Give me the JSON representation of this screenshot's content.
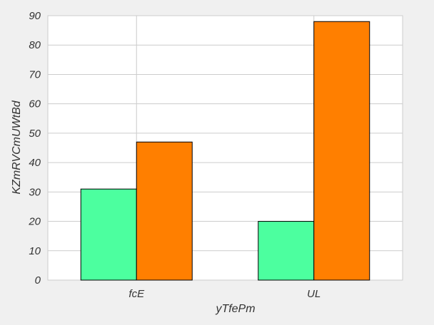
{
  "chart_data": {
    "type": "bar",
    "title": "",
    "xlabel": "yTfePm",
    "ylabel": "KZmRVCmUWtBd",
    "categories": [
      "fcE",
      "UL"
    ],
    "series": [
      {
        "values": [
          31,
          20
        ],
        "color": "#4cff9f"
      },
      {
        "values": [
          47,
          88
        ],
        "color": "#ff7f00"
      }
    ],
    "ylim": [
      0,
      90
    ],
    "yticks": [
      0,
      10,
      20,
      30,
      40,
      50,
      60,
      70,
      80,
      90
    ],
    "grid": true,
    "legend": "none"
  }
}
